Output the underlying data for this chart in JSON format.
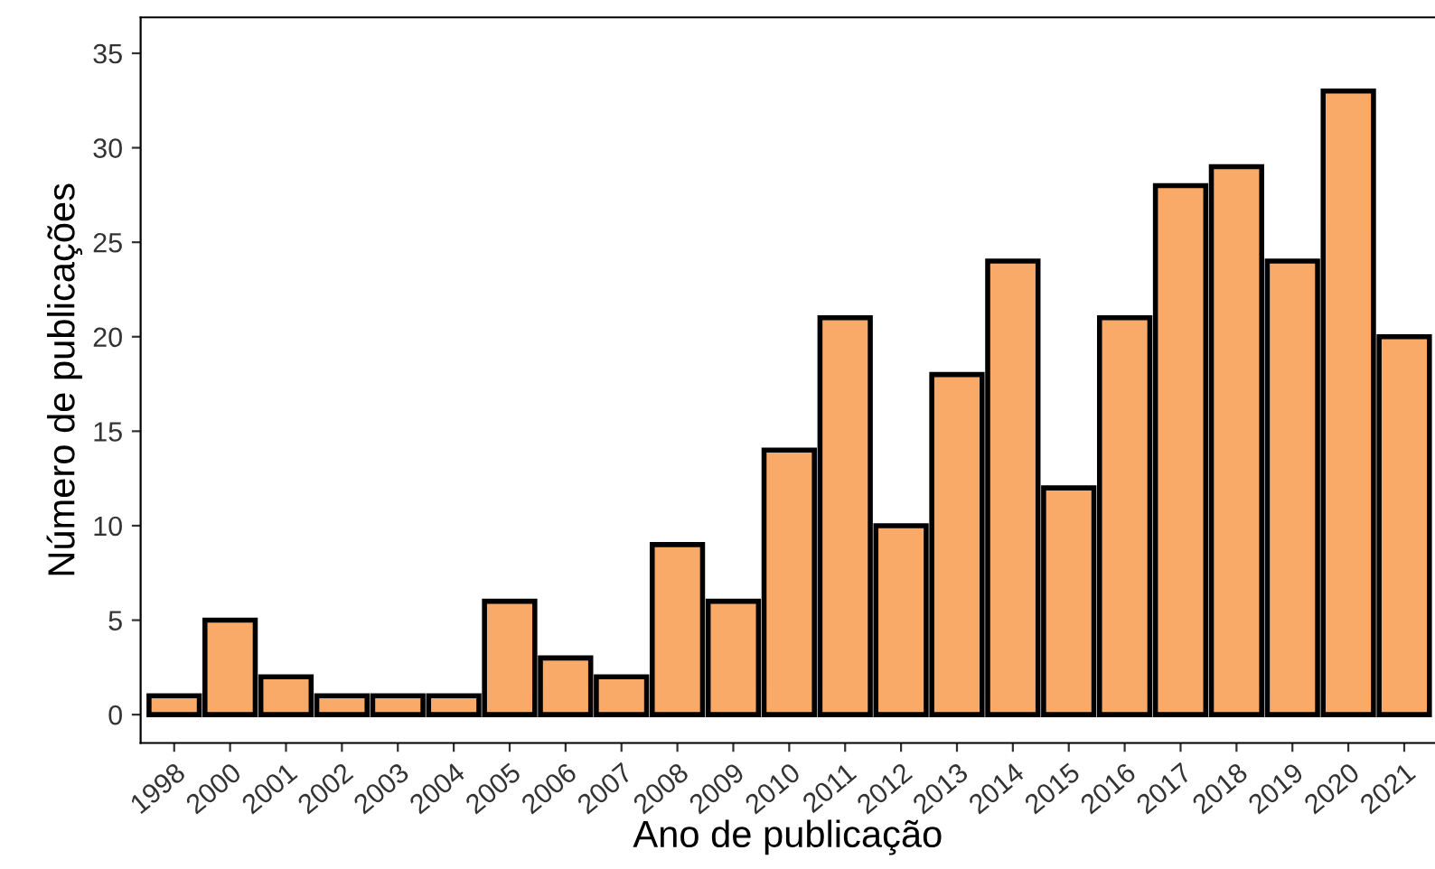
{
  "chart_data": {
    "type": "bar",
    "xlabel": "Ano de publicação",
    "ylabel": "Número de publicações",
    "categories": [
      "1998",
      "2000",
      "2001",
      "2002",
      "2003",
      "2004",
      "2005",
      "2006",
      "2007",
      "2008",
      "2009",
      "2010",
      "2011",
      "2012",
      "2013",
      "2014",
      "2015",
      "2016",
      "2017",
      "2018",
      "2019",
      "2020",
      "2021"
    ],
    "values": [
      1,
      5,
      2,
      1,
      1,
      1,
      6,
      3,
      2,
      9,
      6,
      14,
      21,
      10,
      18,
      24,
      12,
      21,
      28,
      29,
      24,
      33,
      20
    ],
    "color": "#f9aa68",
    "ylim": [
      -1.5,
      36.9
    ],
    "yticks": [
      0,
      5,
      10,
      15,
      20,
      25,
      30,
      35
    ],
    "grid": false,
    "legend": false
  }
}
